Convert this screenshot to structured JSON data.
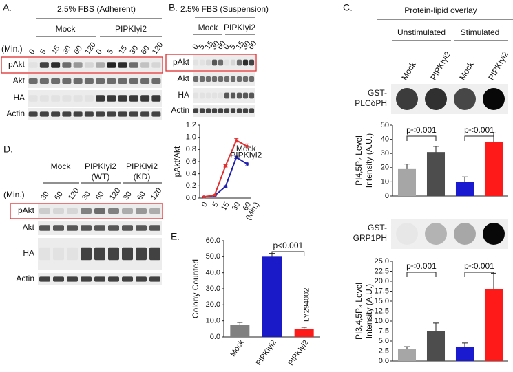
{
  "figure": {
    "A": {
      "label": "A.",
      "condition": "2.5% FBS (Adherent)",
      "groups": [
        "Mock",
        "PIPKIγi2"
      ],
      "time_unit": "(Min.)",
      "times": [
        "0",
        "5",
        "15",
        "30",
        "60",
        "120",
        "0",
        "5",
        "15",
        "30",
        "60",
        "120"
      ],
      "rows": [
        "pAkt",
        "Akt",
        "HA",
        "Actin"
      ]
    },
    "B": {
      "label": "B.",
      "condition": "2.5% FBS (Suspension)",
      "groups": [
        "Mock",
        "PIPKIγi2"
      ],
      "times": [
        "0",
        "5",
        "15",
        "30",
        "60",
        "0",
        "5",
        "15",
        "30",
        "60"
      ],
      "rows": [
        "pAkt",
        "Akt",
        "HA",
        "Actin"
      ]
    },
    "C": {
      "label": "C.",
      "title": "Protein-lipid overlay",
      "groups": [
        "Unstimulated",
        "Stimulated"
      ],
      "lanes": [
        "Mock",
        "PIPKIγi2",
        "Mock",
        "PIPKIγi2"
      ],
      "probes": [
        [
          "GST-",
          "PLCδPH"
        ],
        [
          "GST-",
          "GRP1PH"
        ]
      ]
    },
    "D": {
      "label": "D.",
      "groups": [
        [
          "Mock"
        ],
        [
          "PIPKIγi2",
          "(WT)"
        ],
        [
          "PIPKIγi2",
          "(KD)"
        ]
      ],
      "time_unit": "(Min.)",
      "times": [
        "30",
        "60",
        "120",
        "30",
        "60",
        "120",
        "30",
        "60",
        "120"
      ],
      "rows": [
        "pAkt",
        "Akt",
        "HA",
        "Actin"
      ]
    },
    "E": {
      "label": "E."
    }
  },
  "chart_data": [
    {
      "type": "line",
      "y_label": "pAkt/Akt",
      "x_label": "(Min.)",
      "categories": [
        "0",
        "5",
        "15",
        "30",
        "60"
      ],
      "ylim": [
        0,
        1.2
      ],
      "yticks": [
        {
          "value": 0,
          "label": "0.0"
        },
        0.2,
        0.4,
        0.6,
        0.8,
        {
          "value": 1,
          "label": "1.0"
        },
        1.2
      ],
      "series": [
        {
          "name": "Mock",
          "color": "#2020b0",
          "values": [
            0.02,
            0.04,
            0.19,
            0.67,
            0.56
          ],
          "errors": [
            0.005,
            0.005,
            0.01,
            0.02,
            0.03
          ]
        },
        {
          "name": "PIPKIγi2",
          "color": "#e03030",
          "values": [
            0.02,
            0.05,
            0.53,
            0.95,
            0.85
          ],
          "errors": [
            0.005,
            0.005,
            0.02,
            0.03,
            0.04
          ]
        }
      ]
    },
    {
      "type": "bar",
      "y_label": [
        "PI4,5P₂ Level",
        "Intensity (A.U.)"
      ],
      "ylim": [
        0,
        50
      ],
      "yticks": [
        0,
        10,
        20,
        30,
        40,
        50
      ],
      "values": [
        19,
        31,
        10,
        38
      ],
      "errors": [
        3.5,
        4,
        3.5,
        6.5
      ],
      "colors": [
        "#a6a6a6",
        "#4d4d4d",
        "#1a1ad0",
        "#ff1a1a"
      ],
      "annotations": [
        "p<0.001",
        "p<0.001"
      ]
    },
    {
      "type": "bar",
      "y_label": [
        "PI3,4,5P₃ Level",
        "Intensity (A.U.)"
      ],
      "ylim": [
        0,
        25
      ],
      "yticks": [
        {
          "value": 0,
          "label": "0.0"
        },
        2.5,
        {
          "value": 5,
          "label": "5.0"
        },
        7.5,
        {
          "value": 10,
          "label": "10.0"
        },
        12.5,
        {
          "value": 15,
          "label": "15.0"
        },
        17.5,
        {
          "value": 20,
          "label": "20.0"
        },
        22.5,
        {
          "value": 25,
          "label": "25.0"
        }
      ],
      "values": [
        3,
        7.5,
        3.5,
        18
      ],
      "errors": [
        0.6,
        2,
        1,
        4
      ],
      "colors": [
        "#a6a6a6",
        "#4d4d4d",
        "#1a1ad0",
        "#ff1a1a"
      ],
      "annotations": [
        "p<0.001",
        "p<0.001"
      ]
    },
    {
      "type": "bar",
      "y_label": "Colony Counted",
      "categories": [
        "Mock",
        "PIPKIγi2",
        "PIPKIγi2"
      ],
      "ylim": [
        0,
        60
      ],
      "yticks": [
        {
          "value": 0,
          "label": "0.0"
        },
        {
          "value": 10,
          "label": "10.0"
        },
        {
          "value": 20,
          "label": "20.0"
        },
        {
          "value": 30,
          "label": "30.0"
        },
        {
          "value": 40,
          "label": "40.0"
        },
        {
          "value": 50,
          "label": "50.0"
        },
        {
          "value": 60,
          "label": "60.0"
        }
      ],
      "values": [
        7.5,
        50,
        5
      ],
      "errors": [
        1.5,
        2,
        1
      ],
      "colors": [
        "#808080",
        "#1a1ac8",
        "#ff1a1a"
      ],
      "annotations": [
        "p<0.001",
        "LY294002"
      ]
    }
  ]
}
